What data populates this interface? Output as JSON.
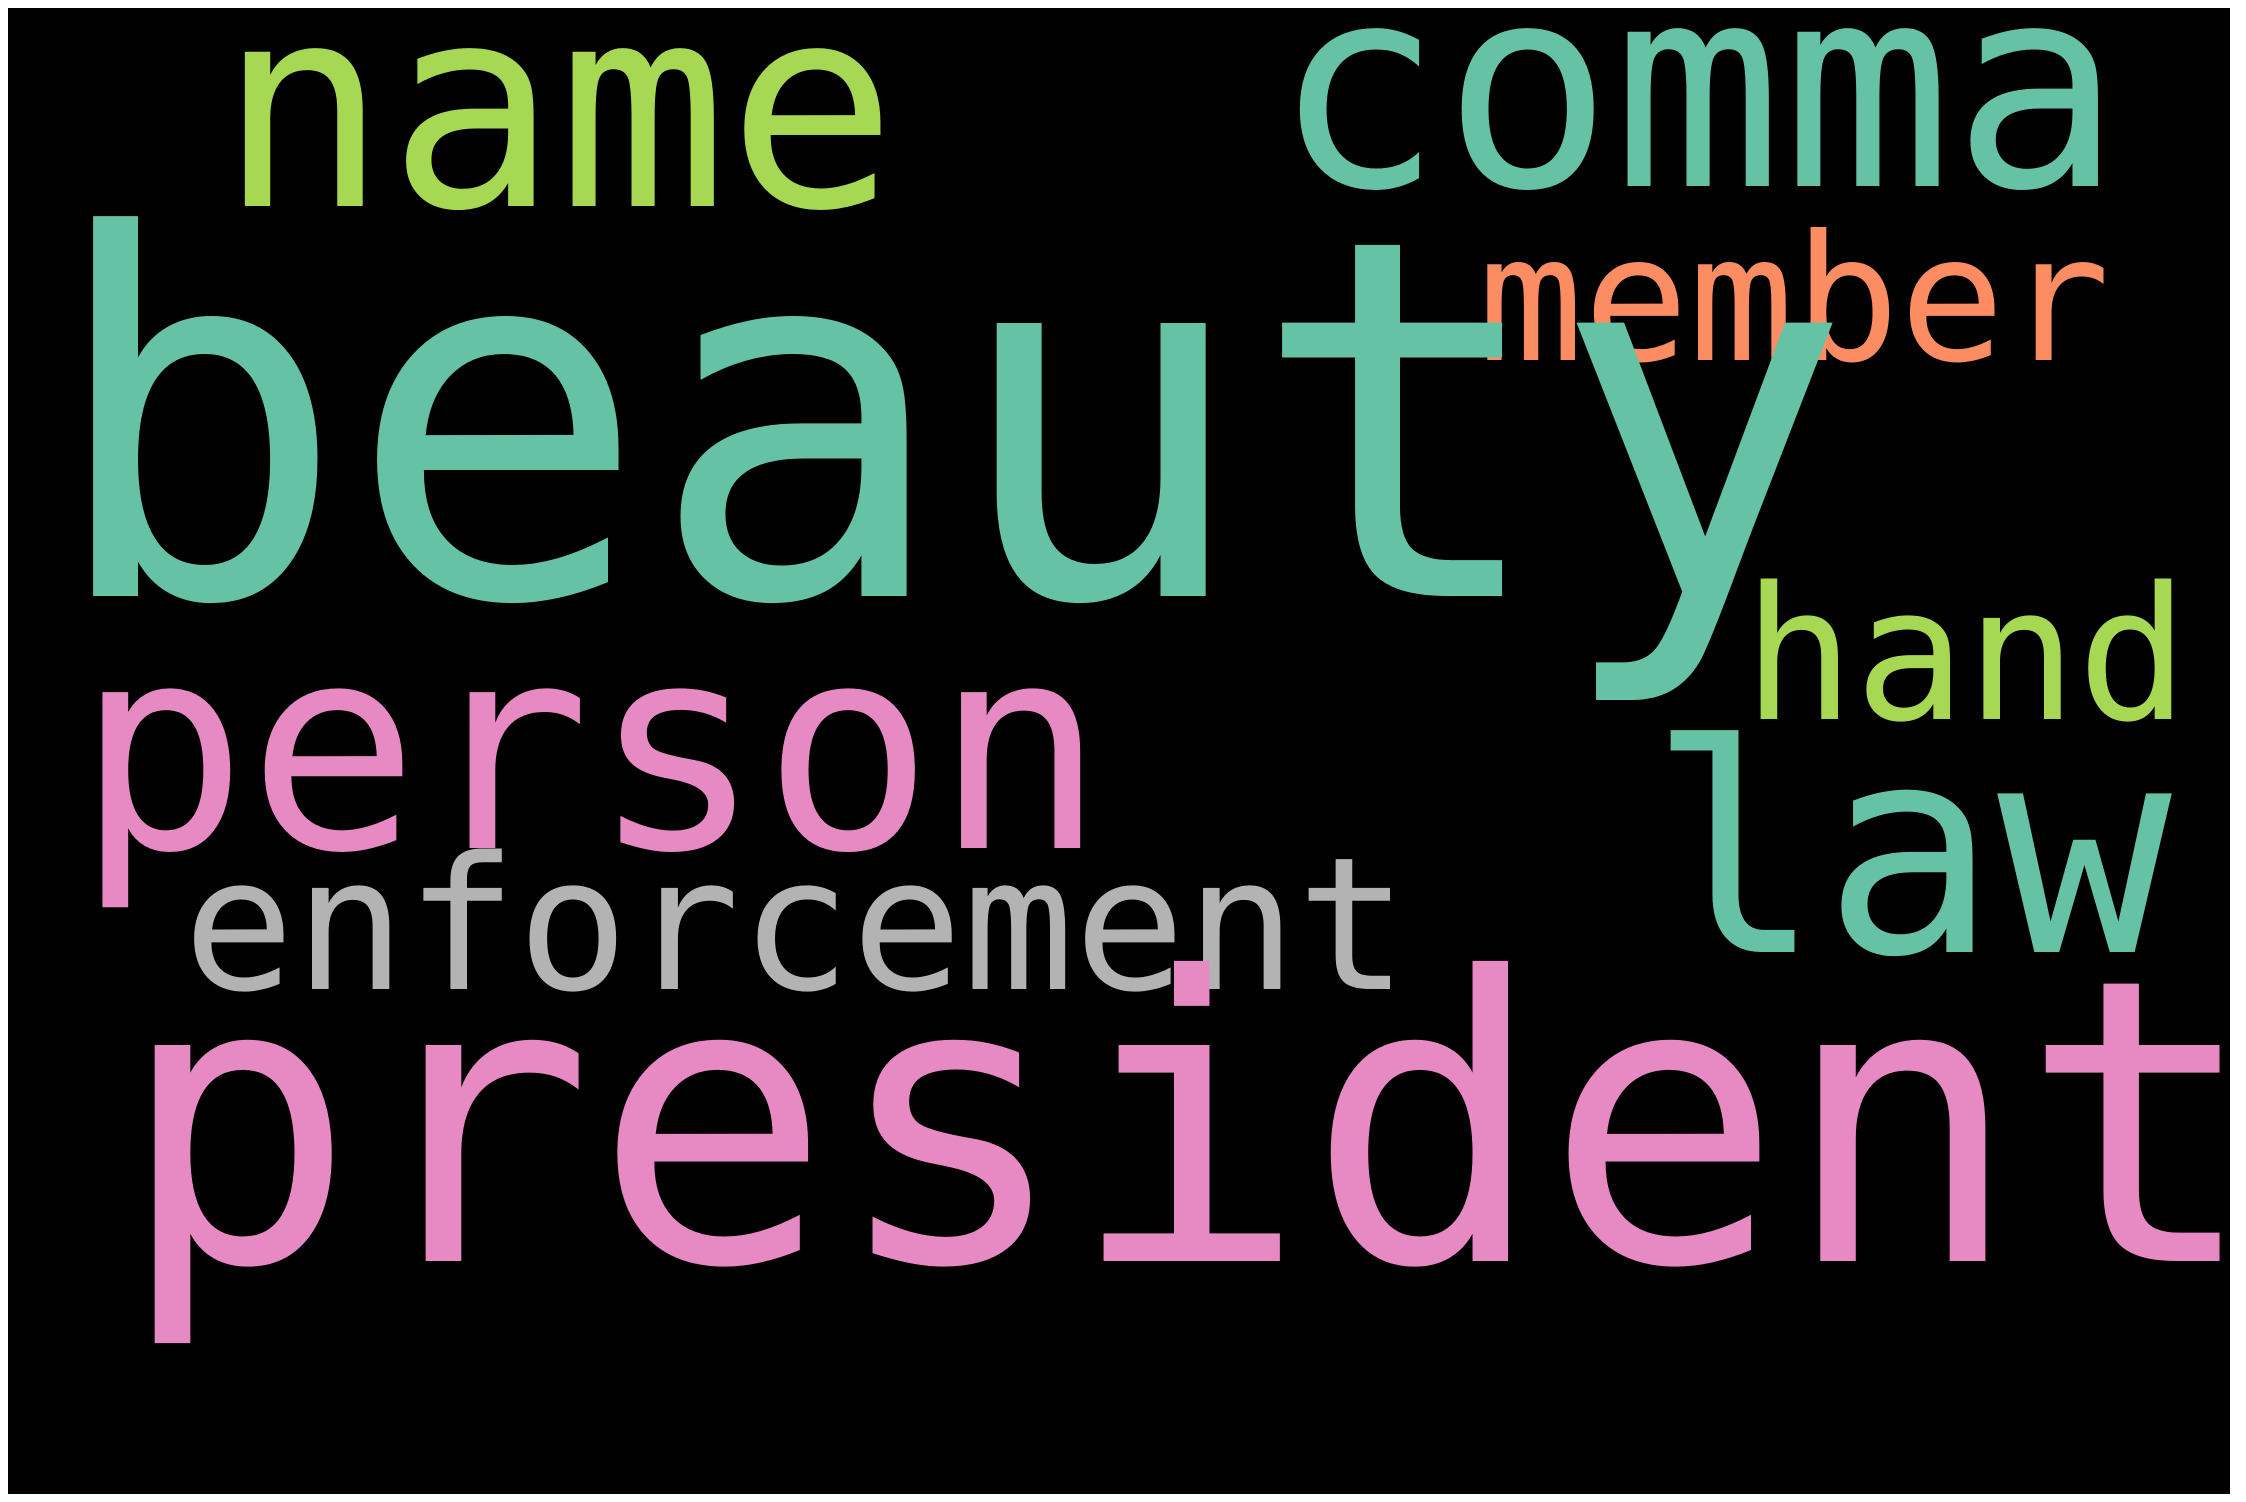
{
  "words": {
    "beauty": {
      "text": "beauty",
      "color": "#66c2a5"
    },
    "president": {
      "text": "president",
      "color": "#e78ac3"
    },
    "person": {
      "text": "person",
      "color": "#e78ac3"
    },
    "name": {
      "text": "name",
      "color": "#a6d854"
    },
    "comma": {
      "text": "comma",
      "color": "#66c2a5"
    },
    "law": {
      "text": "law",
      "color": "#66c2a5"
    },
    "enforcement": {
      "text": "enforcement",
      "color": "#b3b3b3"
    },
    "hand": {
      "text": "hand",
      "color": "#a6d854"
    },
    "member": {
      "text": "member",
      "color": "#fc8d62"
    }
  },
  "background_color": "#000000"
}
